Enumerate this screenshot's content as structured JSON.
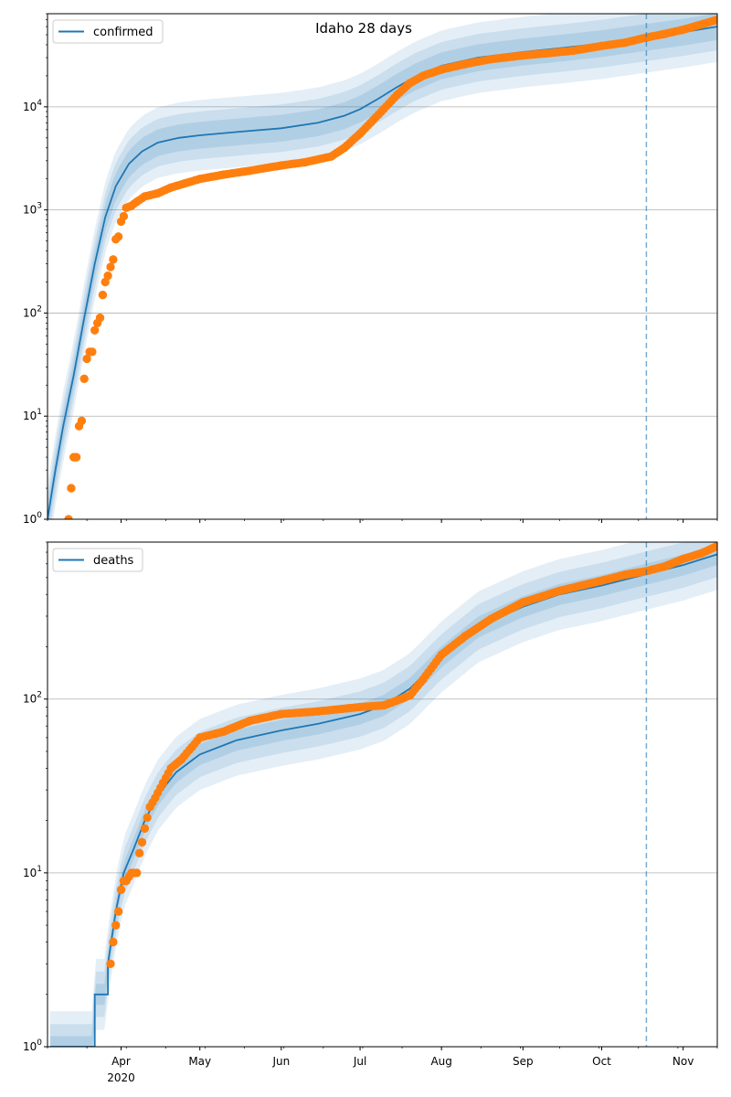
{
  "title": "Idaho 28 days",
  "x_axis": {
    "months": [
      "Apr",
      "May",
      "Jun",
      "Jul",
      "Aug",
      "Sep",
      "Oct",
      "Nov"
    ],
    "year_label": "2020",
    "range": [
      "2020-03-04",
      "2020-11-14"
    ]
  },
  "colors": {
    "model_line": "#1f77b4",
    "band": "#1f77b4",
    "observed": "#ff7f0e",
    "forecast_marker": "#1f77b4",
    "grid": "#b0b0b0"
  },
  "chart_data": [
    {
      "type": "line",
      "legend": "confirmed",
      "legend_position": "top-left",
      "y_scale": "log",
      "ylim": [
        1,
        80000
      ],
      "y_ticks": [
        "10^0",
        "10^1",
        "10^2",
        "10^3",
        "10^4"
      ],
      "grid_y": true,
      "forecast_start": "2020-10-18",
      "model": {
        "x": [
          "2020-03-04",
          "2020-03-07",
          "2020-03-10",
          "2020-03-14",
          "2020-03-18",
          "2020-03-22",
          "2020-03-26",
          "2020-03-30",
          "2020-04-04",
          "2020-04-09",
          "2020-04-15",
          "2020-04-23",
          "2020-05-01",
          "2020-05-15",
          "2020-06-01",
          "2020-06-15",
          "2020-06-25",
          "2020-07-01",
          "2020-07-08",
          "2020-07-15",
          "2020-07-22",
          "2020-08-01",
          "2020-08-15",
          "2020-09-01",
          "2020-09-15",
          "2020-10-01",
          "2020-10-15",
          "2020-11-01",
          "2020-11-14"
        ],
        "y": [
          1,
          3,
          8,
          25,
          90,
          300,
          850,
          1700,
          2800,
          3700,
          4500,
          5000,
          5300,
          5700,
          6200,
          7000,
          8200,
          9500,
          12000,
          15500,
          19500,
          25000,
          30000,
          34000,
          37000,
          41000,
          46000,
          53000,
          60000
        ]
      },
      "observed": {
        "x": [
          "2020-03-12",
          "2020-03-13",
          "2020-03-14",
          "2020-03-15",
          "2020-03-16",
          "2020-03-17",
          "2020-03-18",
          "2020-03-19",
          "2020-03-20",
          "2020-03-21",
          "2020-03-22",
          "2020-03-23",
          "2020-03-24",
          "2020-03-25",
          "2020-03-26",
          "2020-03-27",
          "2020-03-28",
          "2020-03-29",
          "2020-03-30",
          "2020-03-31",
          "2020-04-01",
          "2020-04-02",
          "2020-04-03",
          "2020-04-05",
          "2020-04-07",
          "2020-04-10",
          "2020-04-15",
          "2020-04-20",
          "2020-04-25",
          "2020-05-01",
          "2020-05-10",
          "2020-05-20",
          "2020-06-01",
          "2020-06-10",
          "2020-06-20",
          "2020-06-25",
          "2020-07-01",
          "2020-07-05",
          "2020-07-10",
          "2020-07-15",
          "2020-07-20",
          "2020-07-25",
          "2020-08-01",
          "2020-08-10",
          "2020-08-20",
          "2020-09-01",
          "2020-09-10",
          "2020-09-20",
          "2020-10-01",
          "2020-10-10",
          "2020-10-18",
          "2020-10-25",
          "2020-11-01",
          "2020-11-08",
          "2020-11-14"
        ],
        "y": [
          1,
          2,
          4,
          4,
          8,
          9,
          23,
          36,
          42,
          42,
          68,
          80,
          90,
          150,
          200,
          230,
          280,
          330,
          520,
          550,
          770,
          870,
          1050,
          1100,
          1200,
          1350,
          1450,
          1650,
          1800,
          2000,
          2200,
          2400,
          2700,
          2900,
          3300,
          4000,
          5500,
          7000,
          9500,
          13000,
          17000,
          20000,
          23000,
          26000,
          29000,
          31500,
          33000,
          35000,
          39000,
          42000,
          47000,
          51000,
          56000,
          63000,
          70000
        ]
      }
    },
    {
      "type": "line",
      "legend": "deaths",
      "legend_position": "top-left",
      "y_scale": "log",
      "ylim": [
        1,
        800
      ],
      "y_ticks": [
        "10^0",
        "10^1",
        "10^2"
      ],
      "grid_y": true,
      "forecast_start": "2020-10-18",
      "model": {
        "x": [
          "2020-03-05",
          "2020-03-22",
          "2020-03-22",
          "2020-03-27",
          "2020-03-27",
          "2020-03-30",
          "2020-04-02",
          "2020-04-06",
          "2020-04-10",
          "2020-04-15",
          "2020-04-22",
          "2020-05-01",
          "2020-05-15",
          "2020-06-01",
          "2020-06-15",
          "2020-07-01",
          "2020-07-10",
          "2020-07-20",
          "2020-08-01",
          "2020-08-15",
          "2020-09-01",
          "2020-09-15",
          "2020-10-01",
          "2020-10-15",
          "2020-11-01",
          "2020-11-14"
        ],
        "y": [
          1,
          1,
          2,
          2,
          3,
          6,
          10,
          14,
          20,
          28,
          38,
          48,
          58,
          66,
          72,
          82,
          92,
          115,
          175,
          260,
          340,
          400,
          450,
          510,
          590,
          680
        ]
      },
      "observed": {
        "x": [
          "2020-03-28",
          "2020-03-29",
          "2020-03-30",
          "2020-03-31",
          "2020-04-01",
          "2020-04-02",
          "2020-04-03",
          "2020-04-05",
          "2020-04-07",
          "2020-04-08",
          "2020-04-09",
          "2020-04-10",
          "2020-04-12",
          "2020-04-14",
          "2020-04-17",
          "2020-04-20",
          "2020-04-24",
          "2020-04-28",
          "2020-05-01",
          "2020-05-10",
          "2020-05-20",
          "2020-06-01",
          "2020-06-15",
          "2020-07-01",
          "2020-07-10",
          "2020-07-15",
          "2020-07-20",
          "2020-07-25",
          "2020-08-01",
          "2020-08-10",
          "2020-08-20",
          "2020-09-01",
          "2020-09-15",
          "2020-10-01",
          "2020-10-10",
          "2020-10-18",
          "2020-10-25",
          "2020-11-01",
          "2020-11-08",
          "2020-11-14"
        ],
        "y": [
          3,
          4,
          5,
          6,
          8,
          9,
          9,
          10,
          10,
          13,
          15,
          18,
          24,
          27,
          33,
          40,
          45,
          53,
          60,
          65,
          75,
          82,
          85,
          90,
          92,
          98,
          105,
          130,
          180,
          230,
          290,
          360,
          420,
          480,
          520,
          545,
          580,
          640,
          690,
          760
        ]
      }
    }
  ]
}
